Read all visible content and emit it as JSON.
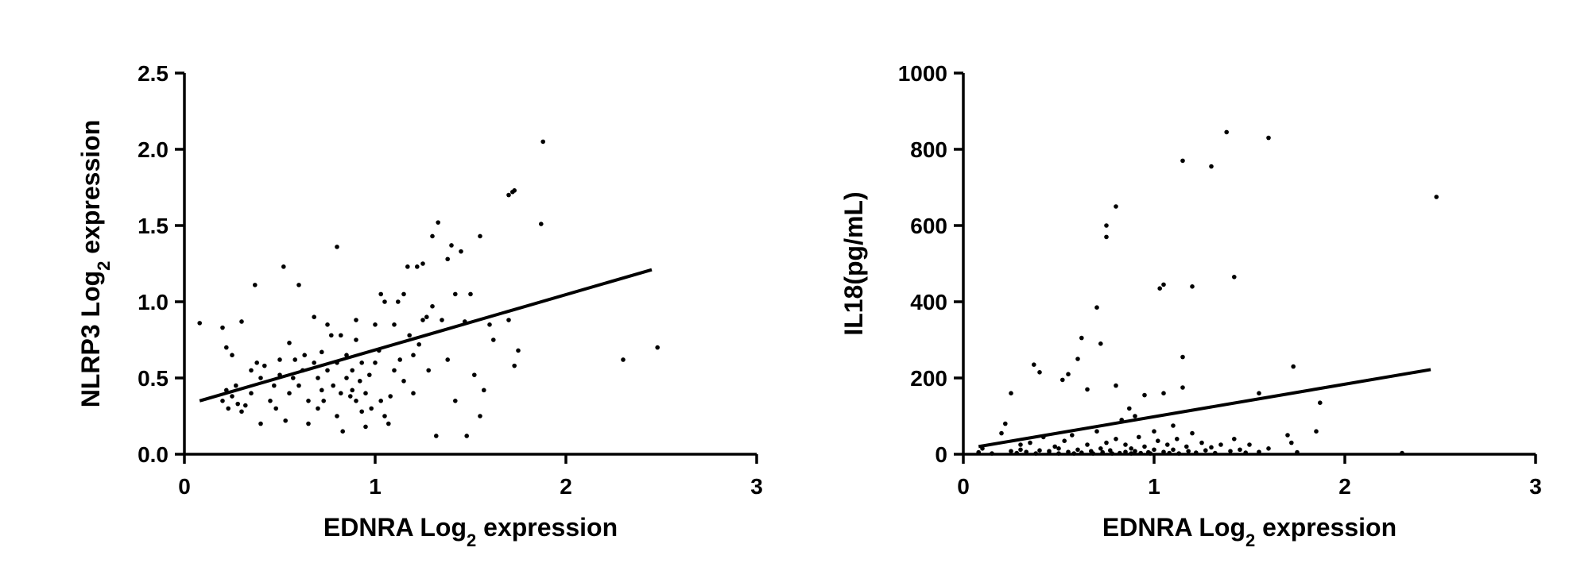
{
  "chart_data": [
    {
      "type": "scatter",
      "xlabel": {
        "main": "EDNRA Log",
        "sub": "2",
        "rest": " expression"
      },
      "ylabel": {
        "main": "NLRP3 Log",
        "sub": "2",
        "rest": " expression"
      },
      "xlim": [
        0,
        3
      ],
      "ylim": [
        0,
        2.5
      ],
      "xticks": [
        "0",
        "1",
        "2",
        "3"
      ],
      "yticks": [
        "0.0",
        "0.5",
        "1.0",
        "1.5",
        "2.0",
        "2.5"
      ],
      "fit": [
        [
          0.08,
          0.35
        ],
        [
          2.45,
          1.21
        ]
      ],
      "points": [
        [
          0.08,
          0.86
        ],
        [
          0.2,
          0.83
        ],
        [
          0.22,
          0.7
        ],
        [
          0.25,
          0.65
        ],
        [
          0.22,
          0.42
        ],
        [
          0.2,
          0.35
        ],
        [
          0.23,
          0.3
        ],
        [
          0.25,
          0.38
        ],
        [
          0.27,
          0.45
        ],
        [
          0.28,
          0.33
        ],
        [
          0.3,
          0.87
        ],
        [
          0.3,
          0.28
        ],
        [
          0.32,
          0.32
        ],
        [
          0.35,
          0.4
        ],
        [
          0.35,
          0.55
        ],
        [
          0.37,
          1.11
        ],
        [
          0.38,
          0.6
        ],
        [
          0.4,
          0.5
        ],
        [
          0.4,
          0.2
        ],
        [
          0.42,
          0.58
        ],
        [
          0.45,
          0.35
        ],
        [
          0.47,
          0.45
        ],
        [
          0.48,
          0.3
        ],
        [
          0.5,
          0.52
        ],
        [
          0.5,
          0.62
        ],
        [
          0.52,
          1.23
        ],
        [
          0.53,
          0.22
        ],
        [
          0.55,
          0.73
        ],
        [
          0.55,
          0.4
        ],
        [
          0.57,
          0.5
        ],
        [
          0.58,
          0.62
        ],
        [
          0.6,
          1.11
        ],
        [
          0.6,
          0.45
        ],
        [
          0.62,
          0.55
        ],
        [
          0.63,
          0.65
        ],
        [
          0.65,
          0.2
        ],
        [
          0.65,
          0.35
        ],
        [
          0.68,
          0.6
        ],
        [
          0.68,
          0.9
        ],
        [
          0.7,
          0.5
        ],
        [
          0.7,
          0.3
        ],
        [
          0.72,
          0.67
        ],
        [
          0.72,
          0.42
        ],
        [
          0.73,
          0.35
        ],
        [
          0.75,
          0.55
        ],
        [
          0.75,
          0.85
        ],
        [
          0.77,
          0.78
        ],
        [
          0.78,
          0.45
        ],
        [
          0.8,
          0.6
        ],
        [
          0.8,
          0.25
        ],
        [
          0.8,
          1.36
        ],
        [
          0.82,
          0.4
        ],
        [
          0.82,
          0.78
        ],
        [
          0.83,
          0.15
        ],
        [
          0.85,
          0.65
        ],
        [
          0.85,
          0.5
        ],
        [
          0.87,
          0.38
        ],
        [
          0.88,
          0.42
        ],
        [
          0.88,
          0.55
        ],
        [
          0.9,
          0.75
        ],
        [
          0.9,
          0.35
        ],
        [
          0.9,
          0.88
        ],
        [
          0.92,
          0.48
        ],
        [
          0.93,
          0.28
        ],
        [
          0.93,
          0.6
        ],
        [
          0.95,
          0.18
        ],
        [
          0.95,
          0.4
        ],
        [
          0.97,
          0.52
        ],
        [
          0.98,
          0.3
        ],
        [
          1.0,
          0.85
        ],
        [
          1.0,
          0.6
        ],
        [
          1.02,
          0.68
        ],
        [
          1.03,
          1.05
        ],
        [
          1.03,
          0.35
        ],
        [
          1.05,
          0.25
        ],
        [
          1.05,
          1.0
        ],
        [
          1.07,
          0.2
        ],
        [
          1.08,
          0.38
        ],
        [
          1.1,
          0.85
        ],
        [
          1.1,
          0.55
        ],
        [
          1.12,
          1.0
        ],
        [
          1.13,
          0.62
        ],
        [
          1.15,
          0.48
        ],
        [
          1.15,
          1.05
        ],
        [
          1.17,
          1.23
        ],
        [
          1.18,
          0.78
        ],
        [
          1.2,
          0.65
        ],
        [
          1.2,
          0.4
        ],
        [
          1.22,
          1.23
        ],
        [
          1.23,
          0.72
        ],
        [
          1.25,
          1.25
        ],
        [
          1.25,
          0.88
        ],
        [
          1.27,
          0.9
        ],
        [
          1.28,
          0.55
        ],
        [
          1.3,
          1.43
        ],
        [
          1.3,
          0.97
        ],
        [
          1.32,
          0.12
        ],
        [
          1.33,
          1.52
        ],
        [
          1.35,
          0.88
        ],
        [
          1.38,
          1.28
        ],
        [
          1.38,
          0.62
        ],
        [
          1.4,
          1.37
        ],
        [
          1.42,
          0.35
        ],
        [
          1.42,
          1.05
        ],
        [
          1.45,
          1.33
        ],
        [
          1.47,
          0.87
        ],
        [
          1.48,
          0.12
        ],
        [
          1.5,
          1.05
        ],
        [
          1.52,
          0.52
        ],
        [
          1.55,
          0.25
        ],
        [
          1.55,
          1.43
        ],
        [
          1.57,
          0.42
        ],
        [
          1.6,
          0.85
        ],
        [
          1.62,
          0.75
        ],
        [
          1.7,
          0.88
        ],
        [
          1.7,
          1.7
        ],
        [
          1.72,
          1.72
        ],
        [
          1.73,
          0.58
        ],
        [
          1.75,
          0.68
        ],
        [
          1.73,
          1.73
        ],
        [
          1.87,
          1.51
        ],
        [
          1.88,
          2.05
        ],
        [
          2.3,
          0.62
        ],
        [
          2.48,
          0.7
        ]
      ]
    },
    {
      "type": "scatter",
      "xlabel": {
        "main": "EDNRA Log",
        "sub": "2",
        "rest": " expression"
      },
      "ylabel": {
        "main": "IL18(pg/mL)",
        "sub": "",
        "rest": ""
      },
      "xlim": [
        0,
        3
      ],
      "ylim": [
        0,
        1000
      ],
      "xticks": [
        "0",
        "1",
        "2",
        "3"
      ],
      "yticks": [
        "0",
        "200",
        "400",
        "600",
        "800",
        "1000"
      ],
      "fit": [
        [
          0.08,
          20
        ],
        [
          2.45,
          222
        ]
      ],
      "points": [
        [
          0.08,
          5
        ],
        [
          0.1,
          15
        ],
        [
          0.15,
          2
        ],
        [
          0.2,
          55
        ],
        [
          0.22,
          80
        ],
        [
          0.25,
          160
        ],
        [
          0.25,
          8
        ],
        [
          0.28,
          3
        ],
        [
          0.3,
          12
        ],
        [
          0.3,
          25
        ],
        [
          0.33,
          6
        ],
        [
          0.35,
          30
        ],
        [
          0.37,
          235
        ],
        [
          0.38,
          2
        ],
        [
          0.4,
          215
        ],
        [
          0.4,
          10
        ],
        [
          0.42,
          45
        ],
        [
          0.45,
          8
        ],
        [
          0.45,
          3
        ],
        [
          0.48,
          20
        ],
        [
          0.5,
          2
        ],
        [
          0.5,
          15
        ],
        [
          0.52,
          195
        ],
        [
          0.53,
          35
        ],
        [
          0.55,
          6
        ],
        [
          0.55,
          210
        ],
        [
          0.57,
          50
        ],
        [
          0.58,
          2
        ],
        [
          0.6,
          250
        ],
        [
          0.6,
          12
        ],
        [
          0.62,
          305
        ],
        [
          0.62,
          4
        ],
        [
          0.65,
          170
        ],
        [
          0.65,
          25
        ],
        [
          0.67,
          8
        ],
        [
          0.68,
          2
        ],
        [
          0.7,
          385
        ],
        [
          0.7,
          60
        ],
        [
          0.72,
          290
        ],
        [
          0.72,
          15
        ],
        [
          0.73,
          5
        ],
        [
          0.75,
          600
        ],
        [
          0.75,
          570
        ],
        [
          0.75,
          30
        ],
        [
          0.77,
          10
        ],
        [
          0.78,
          2
        ],
        [
          0.8,
          650
        ],
        [
          0.8,
          180
        ],
        [
          0.8,
          40
        ],
        [
          0.82,
          3
        ],
        [
          0.83,
          90
        ],
        [
          0.85,
          25
        ],
        [
          0.85,
          6
        ],
        [
          0.87,
          120
        ],
        [
          0.88,
          2
        ],
        [
          0.88,
          15
        ],
        [
          0.9,
          100
        ],
        [
          0.9,
          8
        ],
        [
          0.92,
          45
        ],
        [
          0.93,
          3
        ],
        [
          0.95,
          155
        ],
        [
          0.95,
          20
        ],
        [
          0.97,
          5
        ],
        [
          0.98,
          2
        ],
        [
          1.0,
          60
        ],
        [
          1.0,
          12
        ],
        [
          1.02,
          35
        ],
        [
          1.03,
          435
        ],
        [
          1.05,
          445
        ],
        [
          1.05,
          160
        ],
        [
          1.05,
          6
        ],
        [
          1.07,
          25
        ],
        [
          1.08,
          3
        ],
        [
          1.1,
          75
        ],
        [
          1.1,
          12
        ],
        [
          1.12,
          40
        ],
        [
          1.13,
          2
        ],
        [
          1.15,
          770
        ],
        [
          1.15,
          255
        ],
        [
          1.15,
          175
        ],
        [
          1.17,
          20
        ],
        [
          1.18,
          8
        ],
        [
          1.2,
          440
        ],
        [
          1.2,
          55
        ],
        [
          1.22,
          4
        ],
        [
          1.25,
          30
        ],
        [
          1.27,
          10
        ],
        [
          1.3,
          755
        ],
        [
          1.3,
          18
        ],
        [
          1.32,
          3
        ],
        [
          1.35,
          25
        ],
        [
          1.38,
          845
        ],
        [
          1.4,
          8
        ],
        [
          1.42,
          465
        ],
        [
          1.42,
          40
        ],
        [
          1.45,
          12
        ],
        [
          1.48,
          4
        ],
        [
          1.5,
          25
        ],
        [
          1.55,
          160
        ],
        [
          1.55,
          6
        ],
        [
          1.6,
          830
        ],
        [
          1.6,
          15
        ],
        [
          1.7,
          50
        ],
        [
          1.72,
          30
        ],
        [
          1.73,
          230
        ],
        [
          1.75,
          5
        ],
        [
          1.85,
          60
        ],
        [
          1.87,
          135
        ],
        [
          2.3,
          3
        ],
        [
          2.48,
          675
        ]
      ]
    }
  ]
}
